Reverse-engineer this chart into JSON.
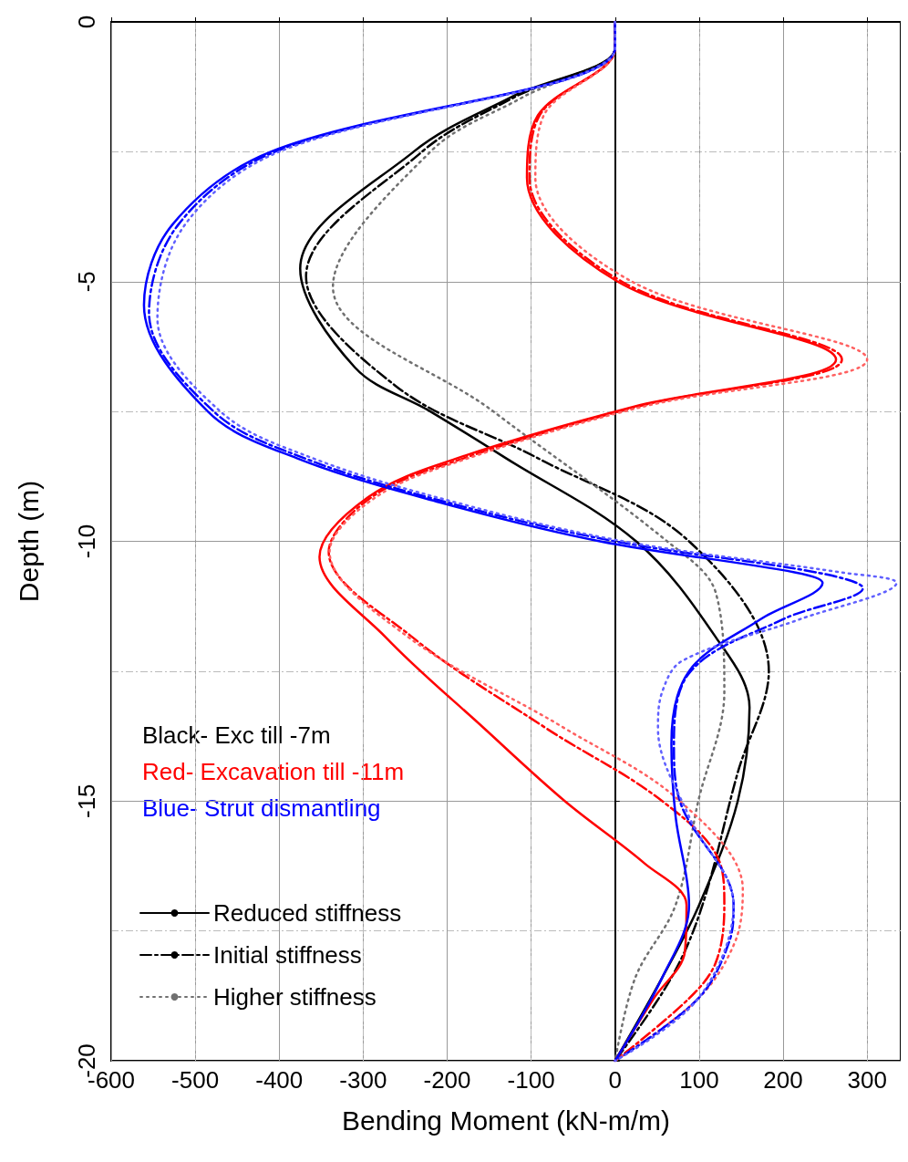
{
  "chart_data": {
    "type": "line",
    "xlabel": "Bending Moment (kN-m/m)",
    "ylabel": "Depth (m)",
    "xlim": [
      -600,
      340
    ],
    "xticks": [
      -600,
      -500,
      -400,
      -300,
      -200,
      -100,
      0,
      100,
      200,
      300
    ],
    "ylim": [
      -20,
      0
    ],
    "yticks": [
      0,
      -5,
      -10,
      -15,
      -20
    ],
    "grid": true,
    "legend": "bottom left",
    "marker": "none",
    "annotations": [
      "Black- Exc till -7m",
      "Red- Excavation till -11m",
      "Blue- Strut dismantling"
    ],
    "series": [
      {
        "name": "Reduced stiffness",
        "color": "#000000",
        "line_style": "solid",
        "x": [
          0,
          0,
          -124,
          -240,
          -375,
          -310,
          -220,
          -130,
          25,
          120,
          160,
          146,
          100,
          56,
          0
        ],
        "values": [
          0,
          -0.5,
          -1.45,
          -2.5,
          -4.75,
          -6.65,
          -7.5,
          -8.4,
          -10,
          -11.85,
          -13.2,
          -15,
          -17,
          -18.4,
          -20
        ]
      },
      {
        "name": "Initial stiffness",
        "color": "#000000",
        "line_style": "dashed",
        "x": [
          0,
          0,
          -120,
          -230,
          -368,
          -262,
          -92,
          88,
          183,
          146,
          104,
          67,
          0
        ],
        "values": [
          0,
          -0.5,
          -1.45,
          -2.5,
          -4.9,
          -7,
          -8.4,
          -10,
          -12.5,
          -14.45,
          -17,
          -18.4,
          -20
        ]
      },
      {
        "name": "Higher stiffness",
        "color": "#707070",
        "line_style": "dotted",
        "x": [
          0,
          0,
          -110,
          -220,
          -336,
          -145,
          62,
          120,
          130,
          99,
          72,
          24,
          0
        ],
        "values": [
          0,
          -0.5,
          -1.45,
          -2.5,
          -5.1,
          -7.5,
          -10,
          -11,
          -12.9,
          -15,
          -17,
          -18.4,
          -20
        ]
      },
      {
        "color": "#ff0000",
        "line_style": "solid",
        "x": [
          0,
          0,
          -92,
          -105,
          3,
          263,
          24,
          -188,
          -294,
          -352,
          -273,
          -156,
          -60,
          35,
          85,
          83,
          46,
          0
        ],
        "values": [
          0,
          -0.5,
          -1.8,
          -3,
          -5,
          -6.5,
          -7.4,
          -8.4,
          -9.15,
          -10.3,
          -11.85,
          -13.6,
          -15,
          -16.2,
          -17,
          -17.9,
          -18.8,
          -20
        ]
      },
      {
        "color": "#ff0000",
        "line_style": "dashed",
        "x": [
          0,
          0,
          -90,
          -102,
          8,
          270,
          28,
          -180,
          -290,
          -341,
          -241,
          -82,
          56,
          125,
          130,
          120,
          88,
          0
        ],
        "values": [
          0,
          -0.5,
          -1.8,
          -3,
          -5,
          -6.5,
          -7.4,
          -8.4,
          -9.15,
          -10.2,
          -11.85,
          -13.6,
          -15,
          -16.2,
          -17,
          -18.1,
          -18.8,
          -20
        ]
      },
      {
        "color": "#ff6060",
        "line_style": "dotted",
        "x": [
          0,
          0,
          -85,
          -95,
          20,
          300,
          35,
          -175,
          -285,
          -340,
          -250,
          -60,
          77,
          152,
          143,
          99,
          0
        ],
        "values": [
          0,
          -0.5,
          -1.8,
          -3,
          -5,
          -6.5,
          -7.4,
          -8.4,
          -9.15,
          -10.2,
          -11.8,
          -13.6,
          -15,
          -16.7,
          -17.7,
          -18.8,
          -20
        ]
      },
      {
        "color": "#0000ff",
        "line_style": "solid",
        "x": [
          0,
          0,
          -410,
          -527,
          -561,
          -485,
          -379,
          -209,
          -18,
          215,
          247,
          173,
          88,
          67,
          72,
          88,
          56,
          0
        ],
        "values": [
          0,
          -0.5,
          -2.5,
          -3.9,
          -5.45,
          -7.5,
          -8.4,
          -9.25,
          -10,
          -10.6,
          -10.8,
          -11.5,
          -12.5,
          -13.9,
          -15.3,
          -17,
          -18.4,
          -20
        ]
      },
      {
        "color": "#0000ff",
        "line_style": "dashed",
        "x": [
          0,
          0,
          -405,
          -520,
          -555,
          -478,
          -370,
          -200,
          0,
          240,
          295,
          200,
          90,
          70,
          77,
          141,
          136,
          99,
          0
        ],
        "values": [
          0,
          -0.5,
          -2.5,
          -3.9,
          -5.6,
          -7.5,
          -8.4,
          -9.25,
          -10,
          -10.6,
          -10.9,
          -11.5,
          -12.5,
          -13.9,
          -15,
          -17,
          -17.7,
          -18.8,
          -20
        ]
      },
      {
        "color": "#6060ff",
        "line_style": "dotted",
        "x": [
          0,
          0,
          -400,
          -512,
          -545,
          -470,
          -360,
          -190,
          10,
          270,
          335,
          220,
          80,
          56,
          51,
          88,
          141,
          99,
          0
        ],
        "values": [
          0,
          -0.5,
          -2.5,
          -3.9,
          -5.7,
          -7.5,
          -8.4,
          -9.25,
          -10,
          -10.6,
          -10.8,
          -11.5,
          -12.3,
          -12.9,
          -13.6,
          -15.3,
          -17,
          -18.8,
          -20
        ]
      }
    ]
  }
}
